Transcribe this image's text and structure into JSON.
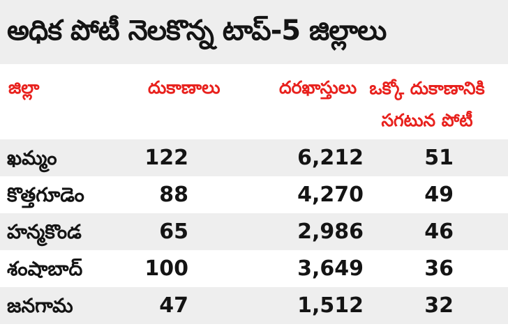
{
  "title": "అధిక పోటీ నెలకొన్న టాప్‌-5 జిల్లాలు",
  "headers": {
    "district": "జిల్లా",
    "shops": "దుకాణాలు",
    "applications": "దరఖాస్తులు",
    "avg_competition": "ఒక్కో దుకాణానికి సగటున పోటీ"
  },
  "rows": [
    {
      "district": "ఖమ్మం",
      "shops": "122",
      "applications": "6,212",
      "avg": "51"
    },
    {
      "district": "కొత్తగూడెం",
      "shops": "88",
      "applications": "4,270",
      "avg": "49"
    },
    {
      "district": "హన్మకొండ",
      "shops": "65",
      "applications": "2,986",
      "avg": "46"
    },
    {
      "district": "శంషాబాద్‌",
      "shops": "100",
      "applications": "3,649",
      "avg": "36"
    },
    {
      "district": "జనగామ",
      "shops": "47",
      "applications": "1,512",
      "avg": "32"
    }
  ],
  "colors": {
    "header_red": "#e8211d",
    "band_gray": "#eeeeee",
    "text_dark": "#141414"
  }
}
